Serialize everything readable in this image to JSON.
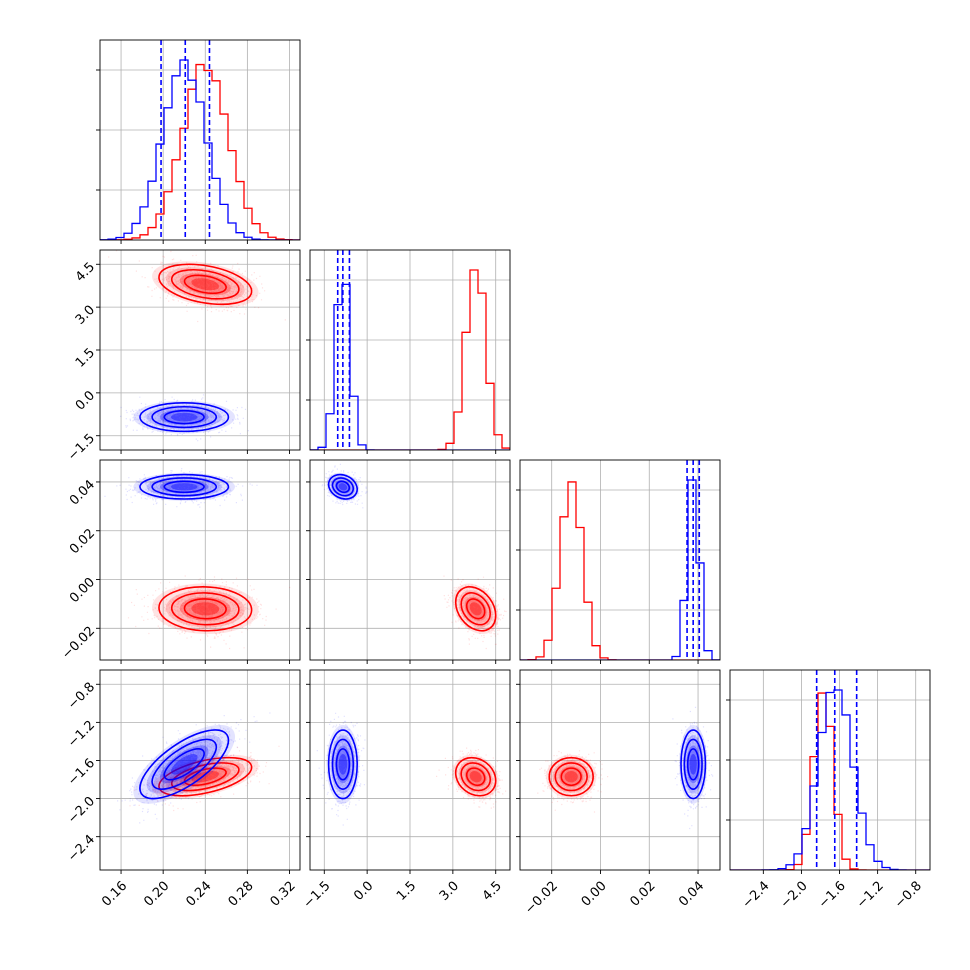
{
  "chart_data": {
    "type": "corner",
    "title": "",
    "parameters": [
      {
        "xlim": [
          0.14,
          0.33
        ],
        "ticks": [
          0.16,
          0.2,
          0.24,
          0.28,
          0.32
        ],
        "tick_labels": [
          "0.16",
          "0.20",
          "0.24",
          "0.28",
          "0.32"
        ]
      },
      {
        "xlim": [
          -2.0,
          5.0
        ],
        "ticks": [
          -1.5,
          0.0,
          1.5,
          3.0,
          4.5
        ],
        "tick_labels": [
          "−1.5",
          "0.0",
          "1.5",
          "3.0",
          "4.5"
        ]
      },
      {
        "xlim": [
          -0.033,
          0.049
        ],
        "ticks": [
          -0.02,
          0.0,
          0.02,
          0.04
        ],
        "tick_labels": [
          "−0.02",
          "0.00",
          "0.02",
          "0.04"
        ]
      },
      {
        "xlim": [
          -2.75,
          -0.65
        ],
        "ticks": [
          -2.4,
          -2.0,
          -1.6,
          -1.2,
          -0.8
        ],
        "tick_labels": [
          "−2.4",
          "−2.0",
          "−1.6",
          "−1.2",
          "−0.8"
        ]
      }
    ],
    "series": [
      {
        "color": "#ff0000",
        "means": [
          0.24,
          3.8,
          -0.012,
          -1.77
        ],
        "sigmas": [
          0.022,
          0.35,
          0.0045,
          0.1
        ],
        "correlations": {
          "0-1": -0.35,
          "0-2": -0.05,
          "0-3": 0.5,
          "1-2": -0.3,
          "1-3": -0.2,
          "2-3": 0.0
        }
      },
      {
        "color": "#0000ff",
        "means": [
          0.22,
          -0.85,
          0.038,
          -1.64
        ],
        "sigmas": [
          0.021,
          0.25,
          0.0025,
          0.18
        ],
        "correlations": {
          "0-1": 0.0,
          "0-2": 0.0,
          "0-3": 0.7,
          "1-2": -0.2,
          "1-3": 0.0,
          "2-3": 0.0
        }
      }
    ],
    "quantile_lines": {
      "color": "#0000ff",
      "values": [
        [
          0.198,
          0.221,
          0.244
        ],
        [
          -1.03,
          -0.85,
          -0.62
        ],
        [
          0.0355,
          0.038,
          0.0405
        ],
        [
          -1.84,
          -1.65,
          -1.42
        ]
      ]
    },
    "grid": true,
    "legend": "none"
  }
}
